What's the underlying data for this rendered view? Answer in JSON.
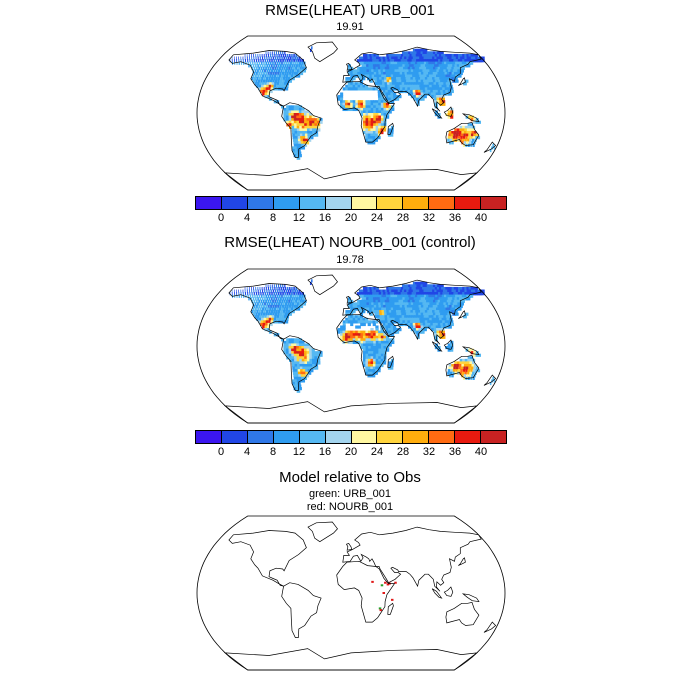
{
  "panels": [
    {
      "title": "RMSE(LHEAT) URB_001",
      "mean_value": "19.91",
      "field": "urb"
    },
    {
      "title": "RMSE(LHEAT) NOURB_001 (control)",
      "mean_value": "19.78",
      "field": "nourb"
    },
    {
      "title": "Model relative to Obs",
      "legend_lines": [
        "green: URB_001",
        "red: NOURB_001"
      ],
      "field": "diff"
    }
  ],
  "colorbar": {
    "labels": [
      "0",
      "4",
      "8",
      "12",
      "16",
      "20",
      "24",
      "28",
      "32",
      "36",
      "40"
    ],
    "colors": [
      "#3b16f0",
      "#2146e6",
      "#2f78e8",
      "#2f9cf0",
      "#55b8f2",
      "#a3d4ee",
      "#fff7a1",
      "#ffd43d",
      "#ffad0d",
      "#ff6b12",
      "#e81a0f",
      "#c82222"
    ]
  },
  "diff_colors": {
    "urb": "#22a22a",
    "nourb": "#e01919"
  }
}
